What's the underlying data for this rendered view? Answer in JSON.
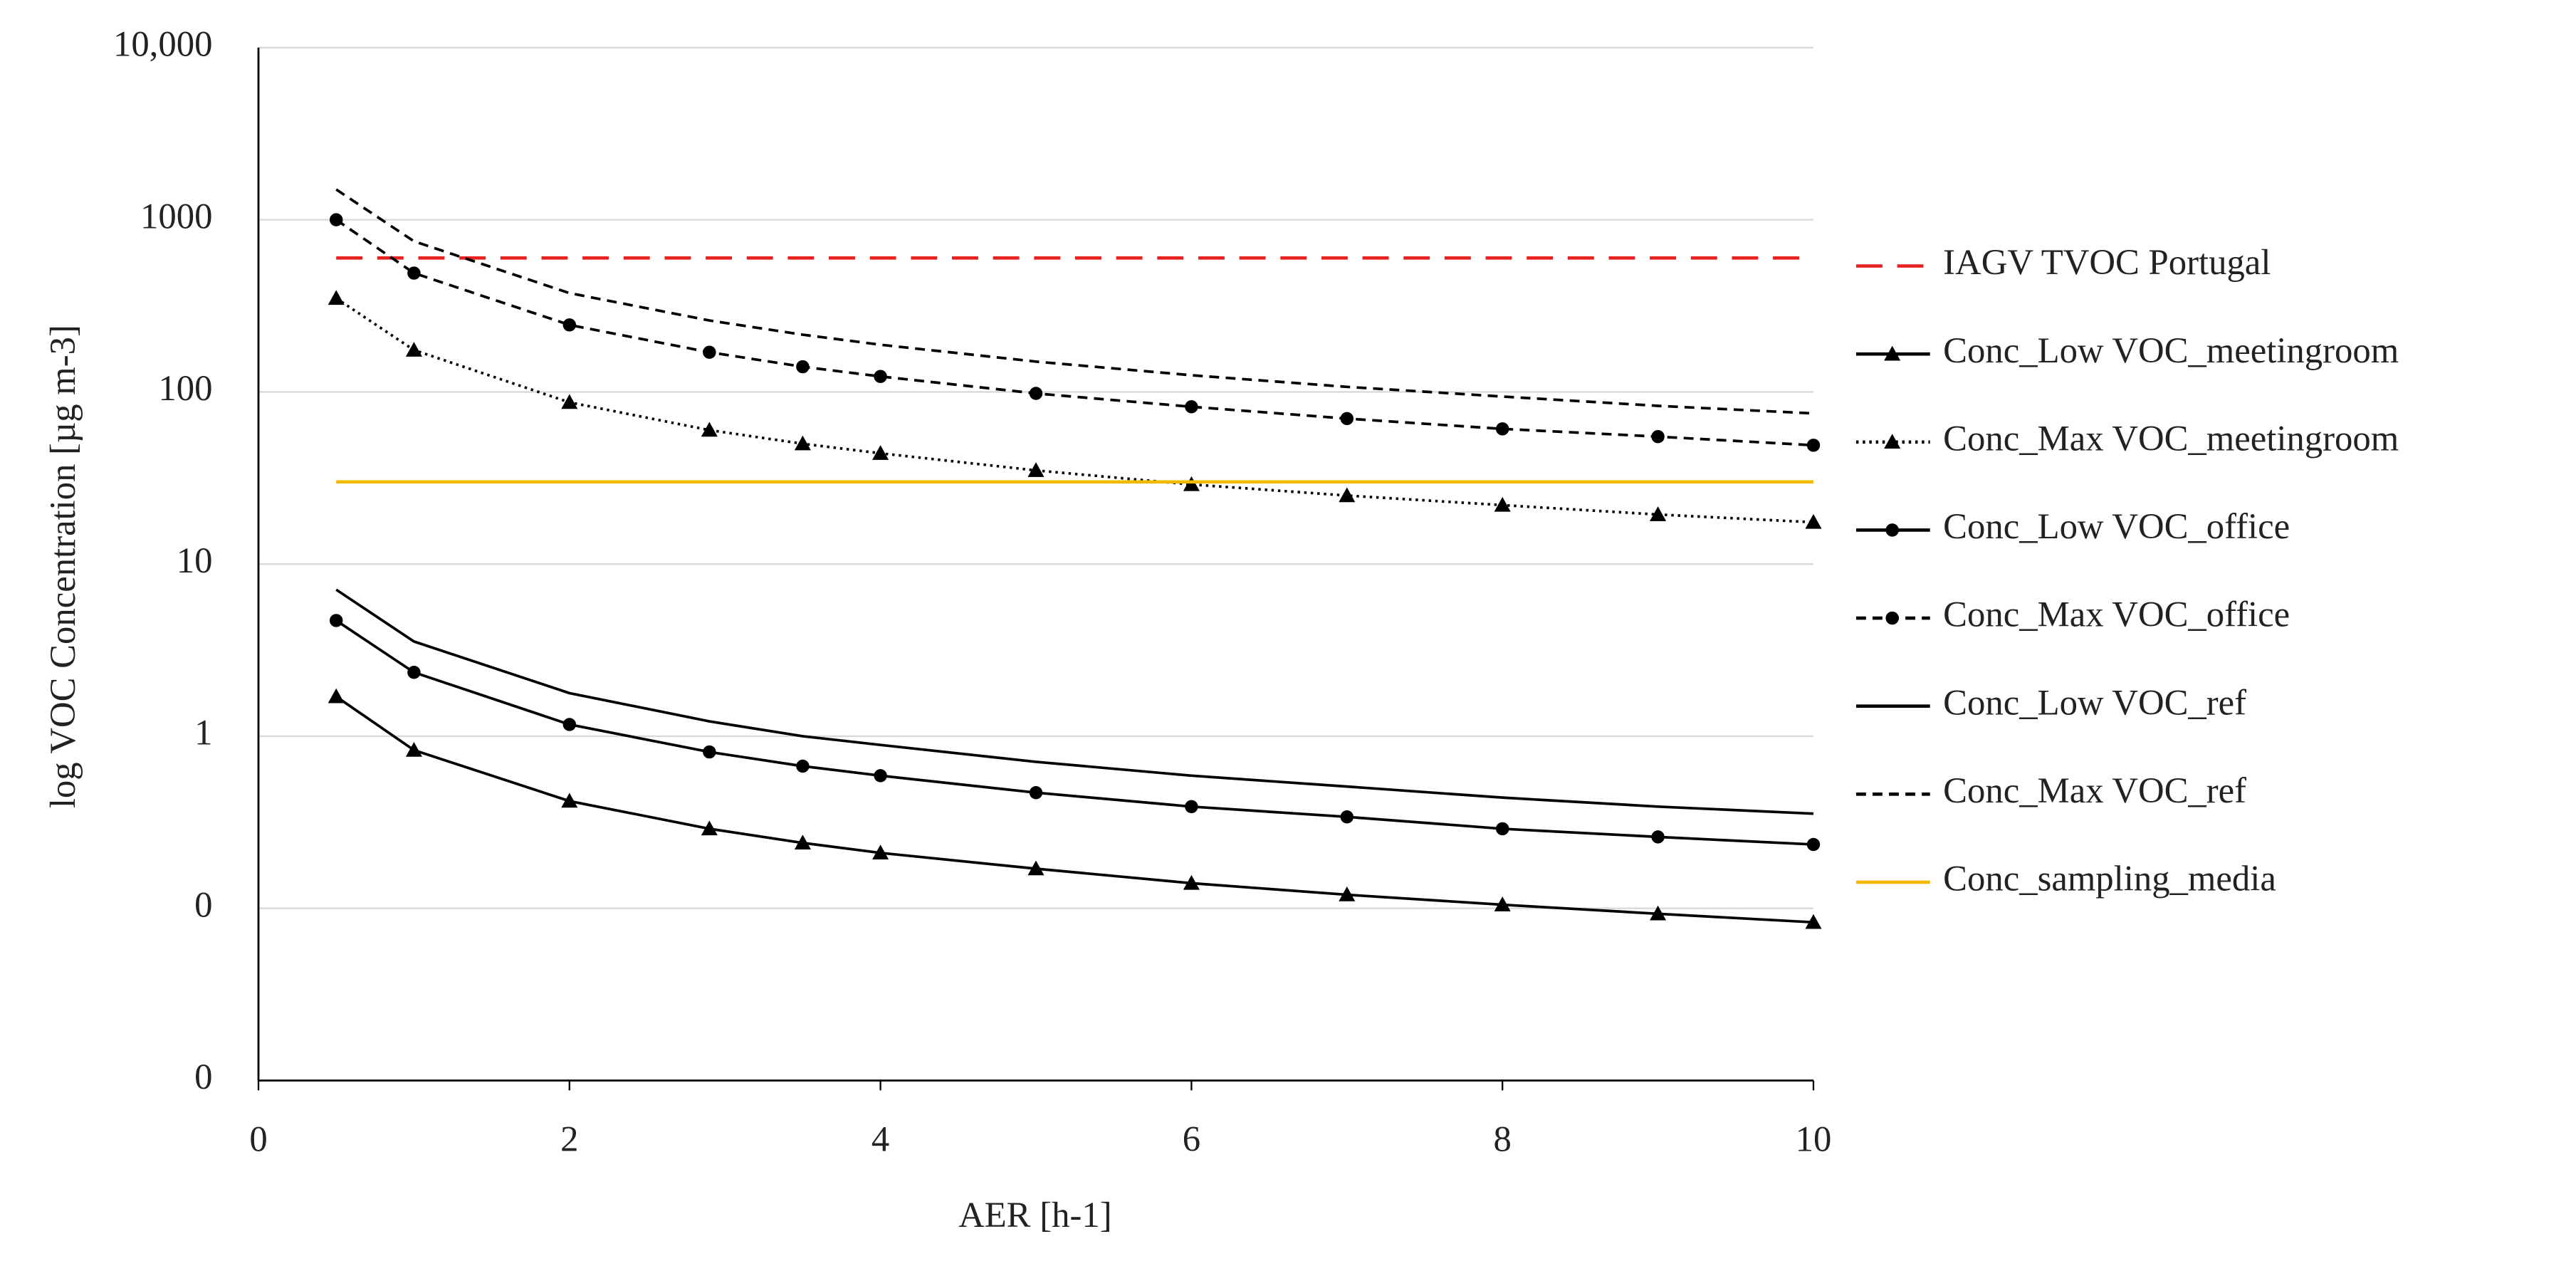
{
  "chart_data": {
    "type": "line",
    "x_label": "AER [h-1]",
    "y_label": "log VOC Concentration [µg m-3]",
    "xlim": [
      0,
      10
    ],
    "xticks": [
      0,
      2,
      4,
      6,
      8,
      10
    ],
    "ylim": [
      0.01,
      10000
    ],
    "log_y": true,
    "grid": true,
    "legend": "right",
    "yticks": [
      {
        "value": 0.01,
        "label": "0"
      },
      {
        "value": 0.1,
        "label": "0"
      },
      1,
      10,
      100,
      1000,
      {
        "value": 10000,
        "label": "10,000"
      }
    ],
    "series": [
      {
        "name": "IAGV TVOC Portugal",
        "color": "#e8211f",
        "line_style": "longdash",
        "marker": "none",
        "x": [
          0.5,
          10
        ],
        "values": [
          600,
          600
        ]
      },
      {
        "name": "Conc_Low VOC_meetingroom",
        "color": "#000000",
        "line_style": "solid",
        "marker": "triangle",
        "x": [
          0.5,
          1,
          2,
          2.9,
          3.5,
          4,
          5,
          6,
          7,
          8,
          9,
          10
        ],
        "values": [
          1.7,
          0.83,
          0.42,
          0.29,
          0.24,
          0.21,
          0.17,
          0.14,
          0.12,
          0.105,
          0.093,
          0.083
        ]
      },
      {
        "name": "Conc_Max VOC_meetingroom",
        "color": "#000000",
        "line_style": "dotted",
        "marker": "triangle",
        "x": [
          0.5,
          1,
          2,
          2.9,
          3.5,
          4,
          5,
          6,
          7,
          8,
          9,
          10
        ],
        "values": [
          350,
          175,
          87,
          60,
          50,
          44,
          35,
          29,
          25,
          22,
          19.4,
          17.5
        ]
      },
      {
        "name": "Conc_Low VOC_office",
        "color": "#000000",
        "line_style": "solid",
        "marker": "circle",
        "x": [
          0.5,
          1,
          2,
          2.9,
          3.5,
          4,
          5,
          6,
          7,
          8,
          9,
          10
        ],
        "values": [
          4.7,
          2.35,
          1.17,
          0.81,
          0.67,
          0.59,
          0.47,
          0.39,
          0.34,
          0.29,
          0.26,
          0.235
        ]
      },
      {
        "name": "Conc_Max VOC_office",
        "color": "#000000",
        "line_style": "dashed",
        "marker": "circle",
        "x": [
          0.5,
          1,
          2,
          2.9,
          3.5,
          4,
          5,
          6,
          7,
          8,
          9,
          10
        ],
        "values": [
          1000,
          490,
          245,
          170,
          140,
          123,
          98,
          82,
          70,
          61,
          55,
          49
        ]
      },
      {
        "name": "Conc_Low VOC_ref",
        "color": "#000000",
        "line_style": "solid",
        "marker": "none",
        "x": [
          0.5,
          1,
          2,
          2.9,
          3.5,
          4,
          5,
          6,
          7,
          8,
          9,
          10
        ],
        "values": [
          7.1,
          3.55,
          1.78,
          1.22,
          1.0,
          0.89,
          0.71,
          0.59,
          0.51,
          0.44,
          0.39,
          0.355
        ]
      },
      {
        "name": "Conc_Max VOC_ref",
        "color": "#000000",
        "line_style": "dashed",
        "marker": "none",
        "x": [
          0.5,
          1,
          2,
          2.9,
          3.5,
          4,
          5,
          6,
          7,
          8,
          9,
          10
        ],
        "values": [
          1500,
          750,
          375,
          260,
          215,
          188,
          150,
          125,
          107,
          94,
          83,
          75
        ]
      },
      {
        "name": "Conc_sampling_media",
        "color": "#f5b800",
        "line_style": "solid",
        "marker": "none",
        "x": [
          0.5,
          10
        ],
        "values": [
          30,
          30
        ]
      }
    ]
  }
}
